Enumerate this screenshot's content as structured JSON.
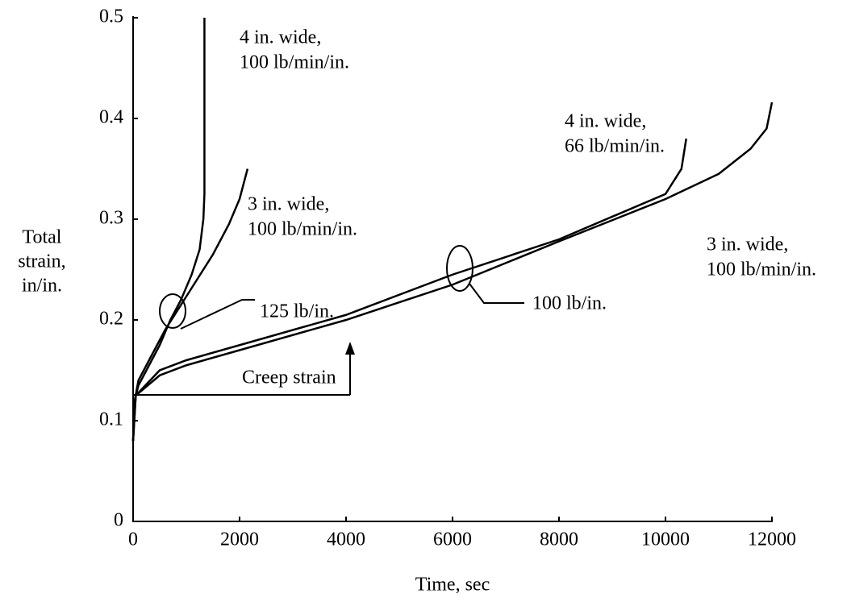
{
  "chart_data": {
    "type": "line",
    "xlabel": "Time, sec",
    "ylabel_lines": [
      "Total",
      "strain,",
      "in/in."
    ],
    "xlim": [
      0,
      12000
    ],
    "xticks": [
      0,
      2000,
      4000,
      6000,
      8000,
      10000,
      12000
    ],
    "ylim": [
      0,
      0.5
    ],
    "yticks": [
      0,
      0.1,
      0.2,
      0.3,
      0.4,
      0.5
    ],
    "color": "#000000",
    "series": [
      {
        "label_lines": [
          "4 in. wide,",
          "100 lb/min/in."
        ],
        "x": [
          0,
          30,
          100,
          300,
          500,
          700,
          900,
          1100,
          1250,
          1320,
          1340,
          1340
        ],
        "values": [
          0.08,
          0.12,
          0.135,
          0.155,
          0.175,
          0.2,
          0.22,
          0.245,
          0.27,
          0.3,
          0.325,
          0.5
        ]
      },
      {
        "label_lines": [
          "3 in. wide,",
          "100 lb/min/in."
        ],
        "x": [
          0,
          30,
          100,
          300,
          600,
          900,
          1200,
          1500,
          1800,
          2000,
          2150
        ],
        "values": [
          0.08,
          0.12,
          0.14,
          0.16,
          0.19,
          0.215,
          0.24,
          0.265,
          0.295,
          0.32,
          0.35
        ]
      },
      {
        "label_lines": [
          "4 in. wide,",
          "66 lb/min/in."
        ],
        "x": [
          0,
          50,
          500,
          1000,
          2000,
          4000,
          6000,
          8000,
          10000,
          10300,
          10390
        ],
        "values": [
          0.08,
          0.125,
          0.15,
          0.16,
          0.175,
          0.205,
          0.245,
          0.28,
          0.325,
          0.35,
          0.38
        ]
      },
      {
        "label_lines": [
          "3 in. wide,",
          "100 lb/min/in."
        ],
        "x": [
          0,
          50,
          500,
          1000,
          2000,
          4000,
          6000,
          8000,
          10000,
          11000,
          11600,
          11900,
          12000
        ],
        "values": [
          0.08,
          0.125,
          0.145,
          0.155,
          0.17,
          0.2,
          0.235,
          0.278,
          0.32,
          0.345,
          0.37,
          0.39,
          0.416
        ]
      }
    ],
    "annotations": [
      "125 lb/in.",
      "100 lb/in.",
      "Creep strain"
    ]
  }
}
